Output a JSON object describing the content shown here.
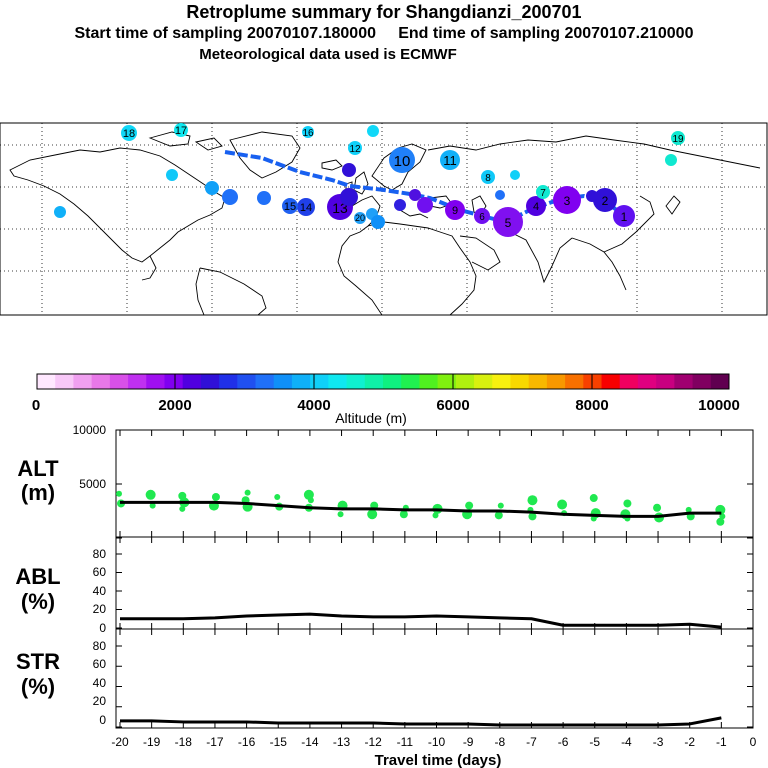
{
  "header": {
    "title": "Retroplume summary for Shangdianzi_200701",
    "sampling_line": "Start time of sampling 20070107.180000     End time of sampling 20070107.210000",
    "met_line": "Meteorological data used is ECMWF"
  },
  "map": {
    "clusters": [
      {
        "label": "1",
        "alt": 2300
      },
      {
        "label": "2",
        "alt": 2400
      },
      {
        "label": "3",
        "alt": 1800
      },
      {
        "label": "4",
        "alt": 2000
      },
      {
        "label": "5",
        "alt": 1800
      },
      {
        "label": "6",
        "alt": 1900
      },
      {
        "label": "7",
        "alt": 2700
      },
      {
        "label": "8",
        "alt": 3000
      },
      {
        "label": "9",
        "alt": 1700
      },
      {
        "label": "10",
        "alt": 2600
      },
      {
        "label": "11",
        "alt": 2900
      },
      {
        "label": "12",
        "alt": 3200
      },
      {
        "label": "13",
        "alt": 1800
      },
      {
        "label": "14",
        "alt": 2200
      },
      {
        "label": "15",
        "alt": 3300
      },
      {
        "label": "16",
        "alt": 3500
      },
      {
        "label": "17",
        "alt": 3700
      },
      {
        "label": "18",
        "alt": 3600
      },
      {
        "label": "19",
        "alt": 3600
      },
      {
        "label": "20",
        "alt": 3400
      }
    ]
  },
  "colorbar": {
    "tick_labels": [
      "0",
      "2000",
      "4000",
      "6000",
      "8000",
      "10000"
    ],
    "label": "Altitude (m)",
    "colors": [
      "#ffe8ff",
      "#f8c8f8",
      "#f0a0f0",
      "#e878e8",
      "#d850e8",
      "#c030f0",
      "#a010f0",
      "#8000f0",
      "#5000e0",
      "#3010d8",
      "#2030e8",
      "#2050f0",
      "#2070f8",
      "#1090f8",
      "#10b0f8",
      "#10d0f8",
      "#10e8f0",
      "#10f0d0",
      "#10f0a8",
      "#10f080",
      "#20f050",
      "#50f020",
      "#80f010",
      "#b0f010",
      "#d8f010",
      "#f8f010",
      "#f8d800",
      "#f8b800",
      "#f89800",
      "#f87000",
      "#f84000",
      "#f80000",
      "#f00060",
      "#e00080",
      "#c80080",
      "#a00070",
      "#800060",
      "#600050"
    ]
  },
  "chart_data": [
    {
      "type": "line",
      "panel": "ALT",
      "ylabel": "ALT\n(m)",
      "ylabel_line1": "ALT",
      "ylabel_line2": "(m)",
      "ylim": [
        0,
        10000
      ],
      "yticks": [
        "10000",
        "5000"
      ],
      "x": [
        -20,
        -19,
        -18,
        -17,
        -16,
        -15,
        -14,
        -13,
        -12,
        -11,
        -10,
        -9,
        -8,
        -7,
        -6,
        -5,
        -4,
        -3,
        -2,
        -1
      ],
      "series": [
        {
          "name": "median altitude",
          "values": [
            3300,
            3300,
            3300,
            3300,
            3200,
            3000,
            2800,
            2700,
            2700,
            2600,
            2600,
            2500,
            2500,
            2400,
            2200,
            2100,
            2000,
            2000,
            2300,
            2300
          ]
        },
        {
          "name": "cluster altitudes",
          "points": [
            [
              -20,
              4100
            ],
            [
              -20,
              3200
            ],
            [
              -19,
              4000
            ],
            [
              -19,
              3000
            ],
            [
              -18,
              3900
            ],
            [
              -18,
              3300
            ],
            [
              -18,
              2700
            ],
            [
              -17,
              3800
            ],
            [
              -17,
              3000
            ],
            [
              -16,
              4200
            ],
            [
              -16,
              3500
            ],
            [
              -16,
              2900
            ],
            [
              -15,
              3800
            ],
            [
              -15,
              2900
            ],
            [
              -14,
              4000
            ],
            [
              -14,
              3500
            ],
            [
              -14,
              2800
            ],
            [
              -13,
              3000
            ],
            [
              -13,
              2200
            ],
            [
              -12,
              3000
            ],
            [
              -12,
              2200
            ],
            [
              -11,
              2800
            ],
            [
              -11,
              2200
            ],
            [
              -10,
              2700
            ],
            [
              -10,
              2100
            ],
            [
              -9,
              3000
            ],
            [
              -9,
              2200
            ],
            [
              -8,
              3000
            ],
            [
              -8,
              2100
            ],
            [
              -7,
              3500
            ],
            [
              -7,
              2600
            ],
            [
              -7,
              2000
            ],
            [
              -6,
              3100
            ],
            [
              -6,
              2300
            ],
            [
              -5,
              3700
            ],
            [
              -5,
              2300
            ],
            [
              -5,
              1800
            ],
            [
              -4,
              3200
            ],
            [
              -4,
              2200
            ],
            [
              -4,
              1800
            ],
            [
              -3,
              2800
            ],
            [
              -3,
              1900
            ],
            [
              -2,
              2600
            ],
            [
              -2,
              2000
            ],
            [
              -1,
              2600
            ],
            [
              -1,
              2000
            ],
            [
              -1,
              1500
            ]
          ]
        }
      ]
    },
    {
      "type": "line",
      "panel": "ABL",
      "ylabel": "ABL\n(%)",
      "ylabel_line1": "ABL",
      "ylabel_line2": "(%)",
      "ylim": [
        0,
        90
      ],
      "yticks": [
        "80",
        "60",
        "40",
        "20",
        "0"
      ],
      "x": [
        -20,
        -19,
        -18,
        -17,
        -16,
        -15,
        -14,
        -13,
        -12,
        -11,
        -10,
        -9,
        -8,
        -7,
        -6,
        -5,
        -4,
        -3,
        -2,
        -1
      ],
      "series": [
        {
          "name": "ABL fraction",
          "values": [
            10,
            10,
            10,
            11,
            13,
            14,
            15,
            13,
            12,
            12,
            13,
            12,
            11,
            10,
            3,
            3,
            3,
            3,
            4,
            1
          ]
        }
      ]
    },
    {
      "type": "line",
      "panel": "STR",
      "ylabel": "STR\n(%)",
      "ylabel_line1": "STR",
      "ylabel_line2": "(%)",
      "ylim": [
        0,
        90
      ],
      "yticks": [
        "80",
        "60",
        "40",
        "20",
        "0"
      ],
      "xlabel": "Travel time (days)",
      "xticks": [
        "-20",
        "-19",
        "-18",
        "-17",
        "-16",
        "-15",
        "-14",
        "-13",
        "-12",
        "-11",
        "-10",
        "-9",
        "-8",
        "-7",
        "-6",
        "-5",
        "-4",
        "-3",
        "-2",
        "-1",
        "0"
      ],
      "x": [
        -20,
        -19,
        -18,
        -17,
        -16,
        -15,
        -14,
        -13,
        -12,
        -11,
        -10,
        -9,
        -8,
        -7,
        -6,
        -5,
        -4,
        -3,
        -2,
        -1
      ],
      "series": [
        {
          "name": "STR fraction",
          "values": [
            6,
            6,
            5,
            5,
            5,
            4,
            4,
            4,
            4,
            3,
            3,
            3,
            2,
            2,
            2,
            2,
            2,
            2,
            3,
            9
          ]
        }
      ]
    }
  ]
}
